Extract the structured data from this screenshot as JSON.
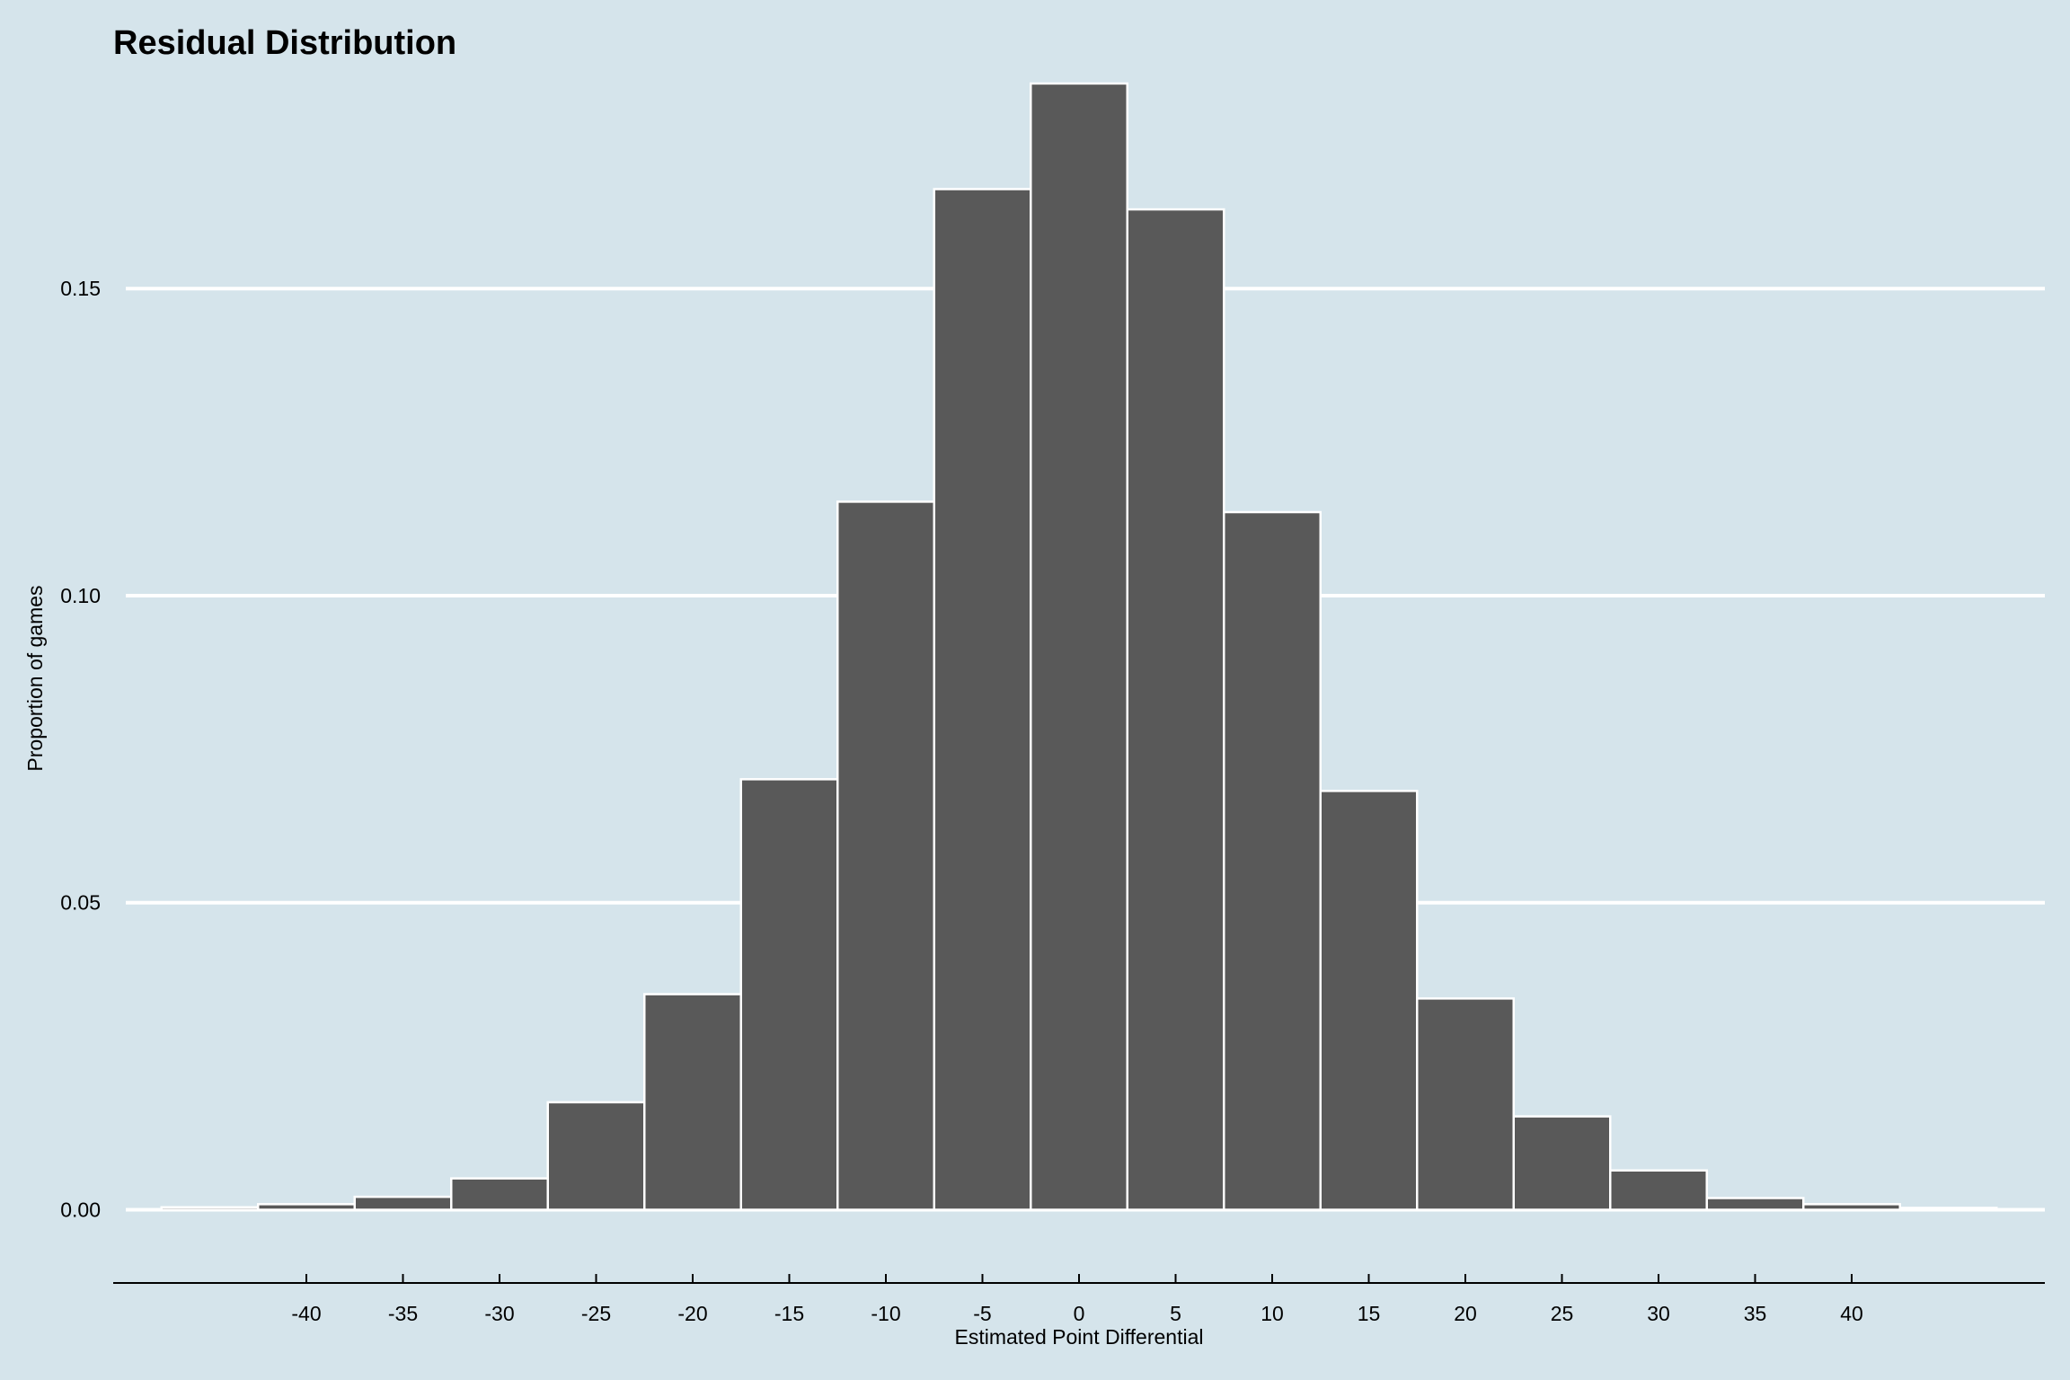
{
  "chart_data": {
    "type": "bar",
    "title": "Residual Distribution",
    "xlabel": "Estimated Point Differential",
    "ylabel": "Proportion of games",
    "bin_width": 5,
    "xlim": [
      -50,
      50
    ],
    "ylim": [
      -0.009,
      0.185
    ],
    "bins": [
      {
        "x": -45,
        "value": 0.0004
      },
      {
        "x": -40,
        "value": 0.0009
      },
      {
        "x": -35,
        "value": 0.0021
      },
      {
        "x": -30,
        "value": 0.0051
      },
      {
        "x": -25,
        "value": 0.0175
      },
      {
        "x": -20,
        "value": 0.0351
      },
      {
        "x": -15,
        "value": 0.0701
      },
      {
        "x": -10,
        "value": 0.1153
      },
      {
        "x": -5,
        "value": 0.1662
      },
      {
        "x": 0,
        "value": 0.1834
      },
      {
        "x": 5,
        "value": 0.1629
      },
      {
        "x": 10,
        "value": 0.1136
      },
      {
        "x": 15,
        "value": 0.0682
      },
      {
        "x": 20,
        "value": 0.0344
      },
      {
        "x": 25,
        "value": 0.0152
      },
      {
        "x": 30,
        "value": 0.0064
      },
      {
        "x": 35,
        "value": 0.0019
      },
      {
        "x": 40,
        "value": 0.0009
      },
      {
        "x": 45,
        "value": 0.0003
      }
    ],
    "x_ticks": [
      -40,
      -35,
      -30,
      -25,
      -20,
      -15,
      -10,
      -5,
      0,
      5,
      10,
      15,
      20,
      25,
      30,
      35,
      40
    ],
    "x_tick_labels": [
      "-40",
      "-35",
      "-30",
      "-25",
      "-20",
      "-15",
      "-10",
      "-5",
      "0",
      "5",
      "10",
      "15",
      "20",
      "25",
      "30",
      "35",
      "40"
    ],
    "y_ticks": [
      0.0,
      0.05,
      0.1,
      0.15
    ],
    "y_tick_labels": [
      "0.00",
      "0.05",
      "0.10",
      "0.15"
    ],
    "grid": "horizontal",
    "legend": "none",
    "colors": {
      "background": "#d5e4eb",
      "bar_fill": "#595959",
      "bar_edge": "#ffffff",
      "grid": "#ffffff",
      "axis": "#000000"
    }
  }
}
